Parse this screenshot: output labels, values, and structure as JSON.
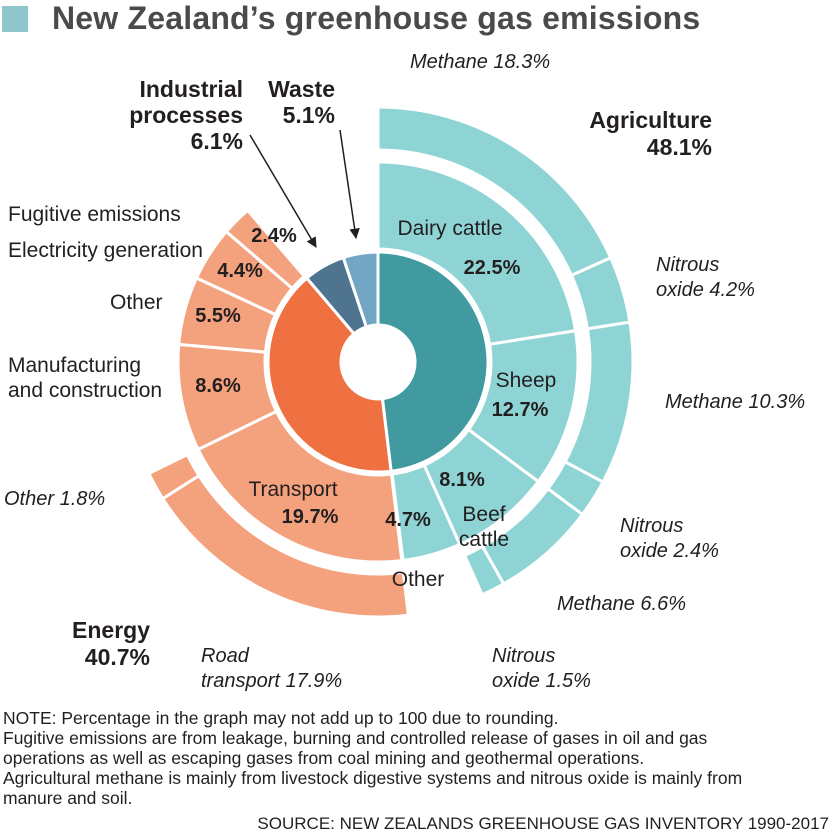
{
  "title": "New Zealand’s greenhouse gas emissions",
  "colors": {
    "agri_inner": "#419a9f",
    "agri_middle": "#8fd4d5",
    "agri_outer": "#8fd4d5",
    "energy_inner": "#ef7041",
    "energy_middle": "#f4a27d",
    "energy_outer": "#f4a27d",
    "industrial": "#4e7490",
    "waste": "#73a5c4",
    "title_square": "#8ec6cb"
  },
  "chart_data": {
    "type": "pie",
    "title": "New Zealand’s greenhouse gas emissions",
    "sectors": [
      {
        "name": "Agriculture",
        "value": 48.1,
        "label": "Agriculture",
        "value_label": "48.1%"
      },
      {
        "name": "Energy",
        "value": 40.7,
        "label": "Energy",
        "value_label": "40.7%"
      },
      {
        "name": "Industrial processes",
        "value": 6.1,
        "label_lines": [
          "Industrial",
          "processes"
        ],
        "value_label": "6.1%"
      },
      {
        "name": "Waste",
        "value": 5.1,
        "label": "Waste",
        "value_label": "5.1%"
      }
    ],
    "subcategories": [
      {
        "sector": "Agriculture",
        "name": "Dairy cattle",
        "value": 22.5,
        "label": "Dairy cattle",
        "value_label": "22.5%"
      },
      {
        "sector": "Agriculture",
        "name": "Sheep",
        "value": 12.7,
        "label": "Sheep",
        "value_label": "12.7%"
      },
      {
        "sector": "Agriculture",
        "name": "Beef cattle",
        "value": 8.1,
        "label_lines": [
          "Beef",
          "cattle"
        ],
        "value_label": "8.1%"
      },
      {
        "sector": "Agriculture",
        "name": "Other",
        "value": 4.7,
        "label": "Other",
        "value_label": "4.7%"
      },
      {
        "sector": "Energy",
        "name": "Transport",
        "value": 19.7,
        "label": "Transport",
        "value_label": "19.7%"
      },
      {
        "sector": "Energy",
        "name": "Manufacturing and construction",
        "value": 8.6,
        "label_lines": [
          "Manufacturing",
          "and construction"
        ],
        "value_label": "8.6%"
      },
      {
        "sector": "Energy",
        "name": "Other",
        "value": 5.5,
        "label": "Other",
        "value_label": "5.5%"
      },
      {
        "sector": "Energy",
        "name": "Electricity generation",
        "value": 4.4,
        "label": "Electricity generation",
        "value_label": "4.4%"
      },
      {
        "sector": "Energy",
        "name": "Fugitive emissions",
        "value": 2.4,
        "label": "Fugitive emissions",
        "value_label": "2.4%"
      }
    ],
    "gases": [
      {
        "parent": "Dairy cattle",
        "name": "Methane",
        "value": 18.3,
        "label_lines": [
          "Methane 18.3%"
        ]
      },
      {
        "parent": "Dairy cattle",
        "name": "Nitrous oxide",
        "value": 4.2,
        "label_lines": [
          "Nitrous",
          "oxide 4.2%"
        ]
      },
      {
        "parent": "Sheep",
        "name": "Methane",
        "value": 10.3,
        "label_lines": [
          "Methane 10.3%"
        ]
      },
      {
        "parent": "Sheep",
        "name": "Nitrous oxide",
        "value": 2.4,
        "label_lines": [
          "Nitrous",
          "oxide 2.4%"
        ]
      },
      {
        "parent": "Beef cattle",
        "name": "Methane",
        "value": 6.6,
        "label_lines": [
          "Methane 6.6%"
        ]
      },
      {
        "parent": "Beef cattle",
        "name": "Nitrous oxide",
        "value": 1.5,
        "label_lines": [
          "Nitrous",
          "oxide 1.5%"
        ]
      },
      {
        "parent": "Transport",
        "name": "Road transport",
        "value": 17.9,
        "label_lines": [
          "Road",
          "transport 17.9%"
        ]
      },
      {
        "parent": "Transport",
        "name": "Other",
        "value": 1.8,
        "label_lines": [
          "Other 1.8%"
        ]
      }
    ]
  },
  "notes": [
    "NOTE: Percentage in the graph may not add up to 100 due to rounding.",
    "Fugitive emissions are from leakage, burning and controlled release of gases in oil and gas",
    "operations as well as escaping gases from coal mining and geothermal operations.",
    "Agricultural methane is mainly from livestock digestive systems and nitrous oxide is mainly from",
    "manure and soil."
  ],
  "source": "SOURCE: NEW ZEALANDS GREENHOUSE GAS INVENTORY 1990-2017"
}
